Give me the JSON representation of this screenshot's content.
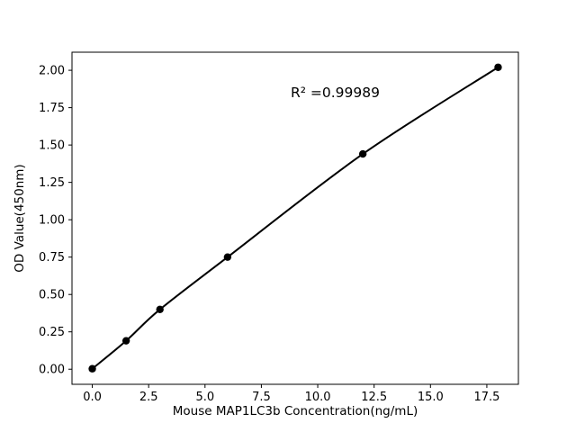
{
  "chart_data": {
    "type": "line",
    "title": "",
    "xlabel": "Mouse MAP1LC3b Concentration(ng/mL)",
    "ylabel": "OD Value(450nm)",
    "x": [
      0,
      1.5,
      3,
      6,
      12,
      18
    ],
    "y": [
      0.003,
      0.19,
      0.4,
      0.75,
      1.44,
      2.02
    ],
    "xlim": [
      -0.9,
      18.9
    ],
    "ylim": [
      -0.101,
      2.121
    ],
    "xticks": [
      0.0,
      2.5,
      5.0,
      7.5,
      10.0,
      12.5,
      15.0,
      17.5
    ],
    "xtick_labels": [
      "0.0",
      "2.5",
      "5.0",
      "7.5",
      "10.0",
      "12.5",
      "15.0",
      "17.5"
    ],
    "yticks": [
      0.0,
      0.25,
      0.5,
      0.75,
      1.0,
      1.25,
      1.5,
      1.75,
      2.0
    ],
    "ytick_labels": [
      "0.00",
      "0.25",
      "0.50",
      "0.75",
      "1.00",
      "1.25",
      "1.50",
      "1.75",
      "2.00"
    ],
    "annotation": {
      "text": "R² =0.99989",
      "x": 8.8,
      "y": 1.82
    },
    "line_color": "#000000",
    "marker_color": "#000000",
    "marker": "circle",
    "grid": false,
    "legend": null,
    "background_color": "#ffffff"
  }
}
